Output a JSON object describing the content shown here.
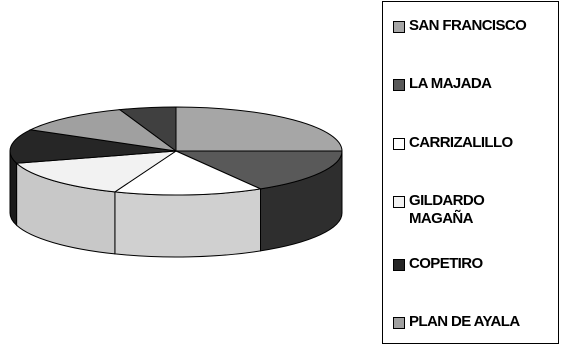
{
  "chart_data": {
    "type": "pie",
    "three_d": true,
    "categories": [
      "SAN FRANCISCO",
      "LA MAJADA",
      "CARRIZALILLO",
      "GILDARDO MAGAÑA",
      "COPETIRO",
      "PLAN DE AYALA",
      ""
    ],
    "values": [
      25.0,
      16.5,
      14.5,
      14.5,
      12.5,
      11.5,
      5.5
    ],
    "colors": [
      "#a6a6a6",
      "#595959",
      "#ffffff",
      "#f2f2f2",
      "#262626",
      "#a0a0a0",
      "#404040"
    ],
    "side_colors": [
      "#7f7f7f",
      "#2e2e2e",
      "#d0d0d0",
      "#c8c8c8",
      "#1a1a1a",
      "#7a7a7a",
      "#262626"
    ],
    "legend_position": "right",
    "legend": [
      {
        "label": "SAN FRANCISCO",
        "color": "#a6a6a6"
      },
      {
        "label": "LA MAJADA",
        "color": "#595959"
      },
      {
        "label": "CARRIZALILLO",
        "color": "#ffffff"
      },
      {
        "label": "GILDARDO MAGAÑA",
        "line1": "GILDARDO",
        "line2": "MAGAÑA",
        "color": "#f2f2f2"
      },
      {
        "label": "COPETIRO",
        "color": "#262626"
      },
      {
        "label": "PLAN DE AYALA",
        "color": "#a0a0a0"
      }
    ]
  }
}
